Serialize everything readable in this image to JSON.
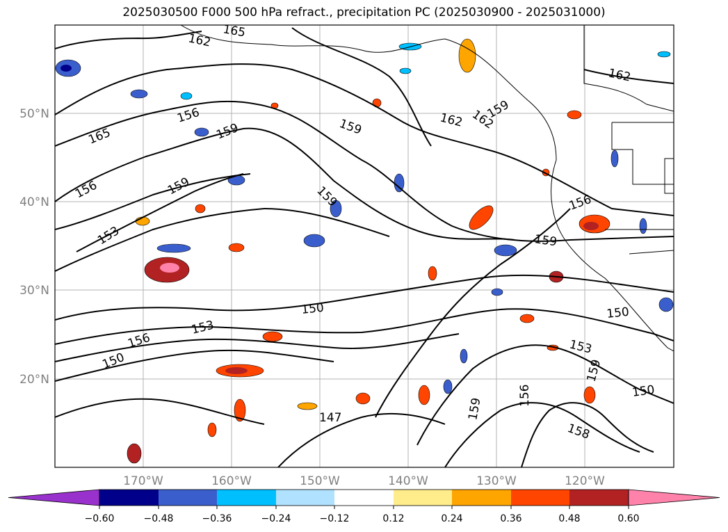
{
  "title": "2025030500 F000 500 hPa refract., precipitation PC (2025030900 - 2025031000)",
  "axes": {
    "lat_labels": [
      "50°N",
      "40°N",
      "30°N",
      "20°N"
    ],
    "lon_labels": [
      "170°W",
      "160°W",
      "150°W",
      "140°W",
      "130°W",
      "120°W"
    ],
    "label_color": "#808080"
  },
  "contour_labels": [
    {
      "text": "162",
      "name": "contour-label-162-a"
    },
    {
      "text": "165",
      "name": "contour-label-165-top"
    },
    {
      "text": "156",
      "name": "contour-label-156-a"
    },
    {
      "text": "159",
      "name": "contour-label-159-a"
    },
    {
      "text": "165",
      "name": "contour-label-165-b"
    },
    {
      "text": "159",
      "name": "contour-label-159-b"
    },
    {
      "text": "162",
      "name": "contour-label-162-b"
    },
    {
      "text": "162",
      "name": "contour-label-162-c"
    },
    {
      "text": "159",
      "name": "contour-label-159-c"
    },
    {
      "text": "162",
      "name": "contour-label-162-d"
    },
    {
      "text": "156",
      "name": "contour-label-156-b"
    },
    {
      "text": "159",
      "name": "contour-label-159-d"
    },
    {
      "text": "159",
      "name": "contour-label-159-e"
    },
    {
      "text": "153",
      "name": "contour-label-153-a"
    },
    {
      "text": "156",
      "name": "contour-label-156-c"
    },
    {
      "text": "159",
      "name": "contour-label-159-f"
    },
    {
      "text": "150",
      "name": "contour-label-150-a"
    },
    {
      "text": "150",
      "name": "contour-label-150-b"
    },
    {
      "text": "153",
      "name": "contour-label-153-b"
    },
    {
      "text": "156",
      "name": "contour-label-156-d"
    },
    {
      "text": "150",
      "name": "contour-label-150-c"
    },
    {
      "text": "153",
      "name": "contour-label-153-c"
    },
    {
      "text": "159",
      "name": "contour-label-159-g"
    },
    {
      "text": "150",
      "name": "contour-label-150-d"
    },
    {
      "text": "156",
      "name": "contour-label-156-e"
    },
    {
      "text": "159",
      "name": "contour-label-159-h"
    },
    {
      "text": "147",
      "name": "contour-label-147"
    },
    {
      "text": "158",
      "name": "contour-label-158"
    }
  ],
  "colorbar": {
    "ticks": [
      "−0.60",
      "−0.48",
      "−0.36",
      "−0.24",
      "−0.12",
      "0.12",
      "0.24",
      "0.36",
      "0.48",
      "0.60"
    ],
    "colors": [
      "#9932cc",
      "#00008b",
      "#3a5fcd",
      "#00bfff",
      "#b0e2ff",
      "#ffffff",
      "#ffec8b",
      "#ffa500",
      "#ff4500",
      "#b22222",
      "#ff82ab"
    ]
  }
}
